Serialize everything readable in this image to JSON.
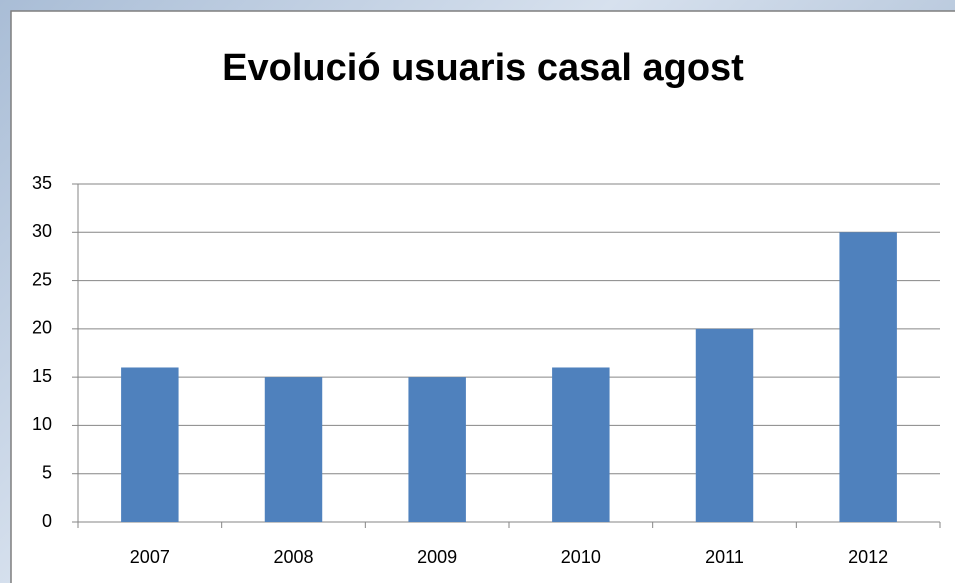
{
  "chart_data": {
    "type": "bar",
    "title": "Evolució usuaris casal agost",
    "categories": [
      "2007",
      "2008",
      "2009",
      "2010",
      "2011",
      "2012"
    ],
    "values": [
      16,
      15,
      15,
      16,
      20,
      30
    ],
    "color": "#4f81bd",
    "ylim": [
      0,
      35
    ],
    "yticks": [
      0,
      5,
      10,
      15,
      20,
      25,
      30,
      35
    ],
    "grid": true
  }
}
